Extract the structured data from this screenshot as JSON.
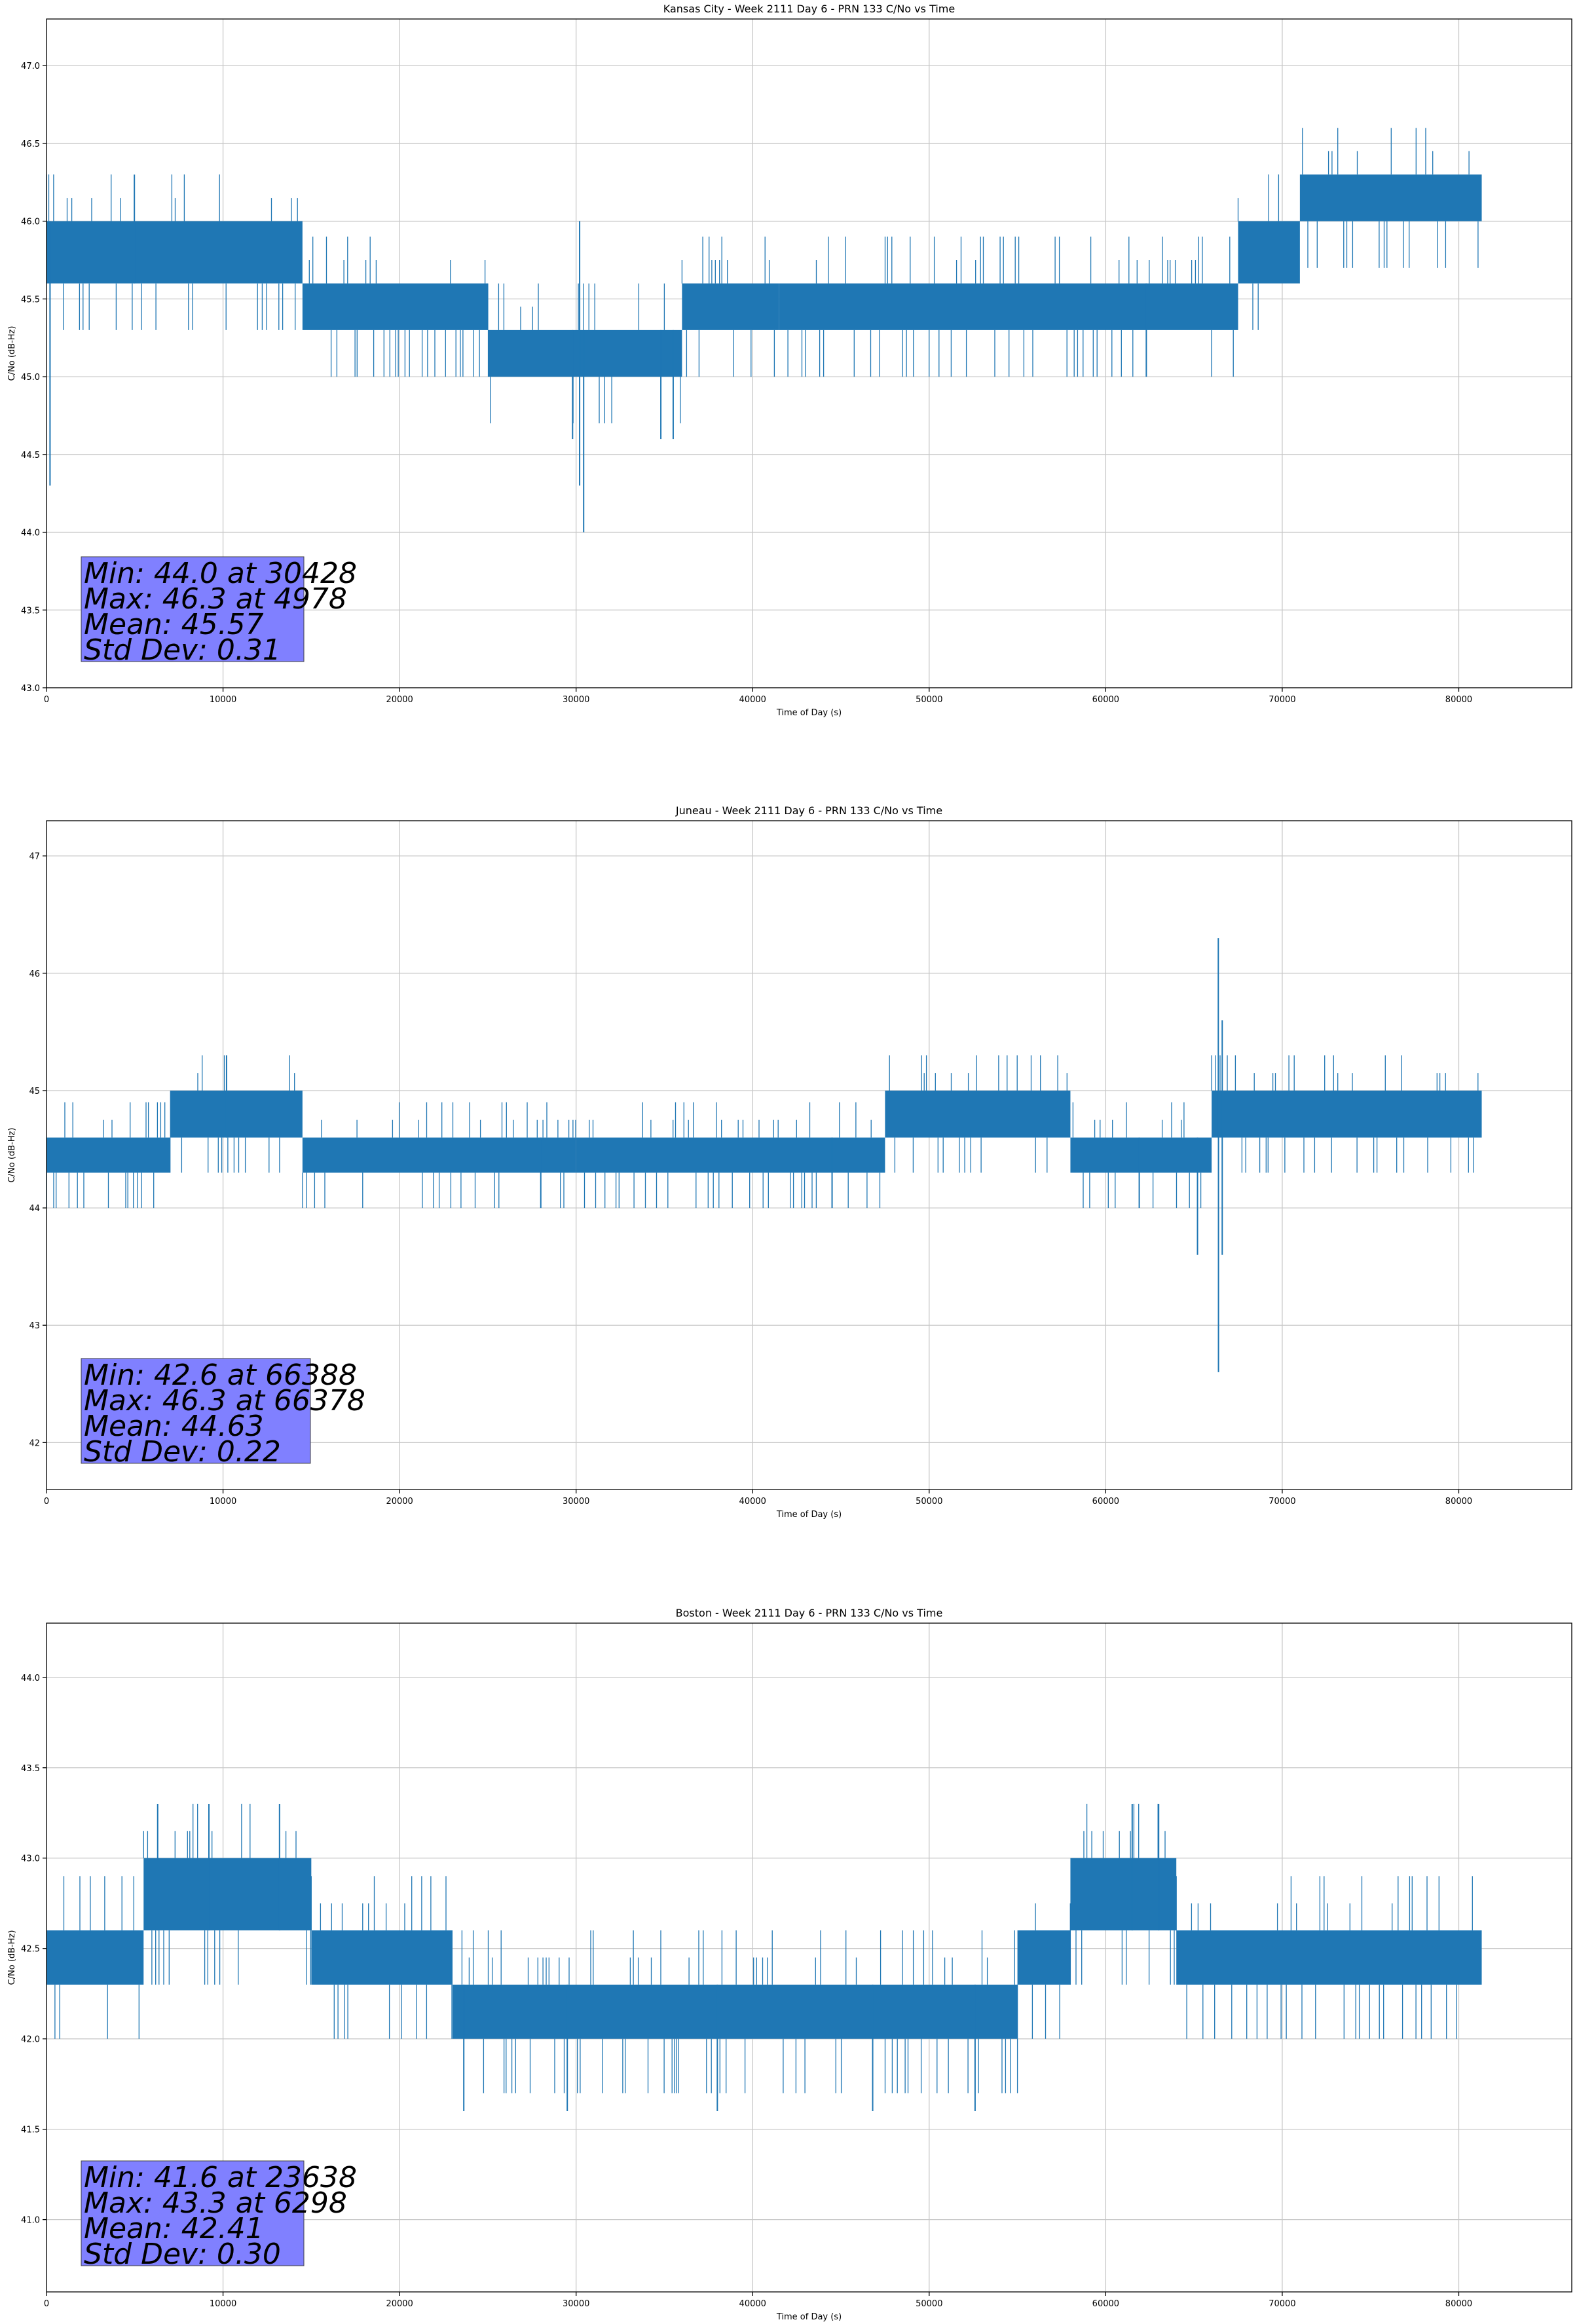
{
  "colors": {
    "series": "#1f77b4",
    "stats_box": "#8080ff",
    "grid": "#c8c8c8"
  },
  "chart_data": [
    {
      "type": "line",
      "title": "Kansas City - Week 2111 Day 6 - PRN 133 C/No vs Time",
      "xlabel": "Time of Day (s)",
      "ylabel": "C/No (dB-Hz)",
      "xlim": [
        0,
        86400
      ],
      "ylim": [
        43.0,
        47.3
      ],
      "xticks": [
        0,
        10000,
        20000,
        30000,
        40000,
        50000,
        60000,
        70000,
        80000
      ],
      "yticks": [
        43.0,
        43.5,
        44.0,
        44.5,
        45.0,
        45.5,
        46.0,
        46.5,
        47.0
      ],
      "ytick_labels": [
        "43.0",
        "43.5",
        "44.0",
        "44.5",
        "45.0",
        "45.5",
        "46.0",
        "46.5",
        "47.0"
      ],
      "grid": true,
      "bands": [
        {
          "x": [
            0,
            14500
          ],
          "low": 45.6,
          "high": 46.0
        },
        {
          "x": [
            14500,
            25000
          ],
          "low": 45.3,
          "high": 45.6
        },
        {
          "x": [
            25000,
            36000
          ],
          "low": 45.0,
          "high": 45.3
        },
        {
          "x": [
            36000,
            41500
          ],
          "low": 45.3,
          "high": 45.6
        },
        {
          "x": [
            41500,
            67500
          ],
          "low": 45.3,
          "high": 45.6
        },
        {
          "x": [
            67500,
            71000
          ],
          "low": 45.6,
          "high": 46.0
        },
        {
          "x": [
            71000,
            81300
          ],
          "low": 46.0,
          "high": 46.3
        }
      ],
      "spikes": [
        {
          "x": 30428,
          "low": 44.0,
          "high": 45.3
        },
        {
          "x": 4978,
          "low": 45.6,
          "high": 46.3
        },
        {
          "x": 200,
          "low": 44.3,
          "high": 46.0
        },
        {
          "x": 29800,
          "low": 44.6,
          "high": 45.3
        },
        {
          "x": 30200,
          "low": 44.3,
          "high": 46.0
        },
        {
          "x": 34800,
          "low": 44.6,
          "high": 45.3
        },
        {
          "x": 35500,
          "low": 44.6,
          "high": 45.3
        },
        {
          "x": 62300,
          "low": 45.0,
          "high": 45.6
        }
      ],
      "stats": {
        "min": "Min: 44.0 at 30428",
        "max": "Max: 46.3 at 4978",
        "mean": "Mean: 45.57",
        "std": "Std Dev: 0.31"
      }
    },
    {
      "type": "line",
      "title": "Juneau - Week 2111 Day 6 - PRN 133 C/No vs Time",
      "xlabel": "Time of Day (s)",
      "ylabel": "C/No (dB-Hz)",
      "xlim": [
        0,
        86400
      ],
      "ylim": [
        41.6,
        47.3
      ],
      "xticks": [
        0,
        10000,
        20000,
        30000,
        40000,
        50000,
        60000,
        70000,
        80000
      ],
      "yticks": [
        42,
        43,
        44,
        45,
        46,
        47
      ],
      "ytick_labels": [
        "42",
        "43",
        "44",
        "45",
        "46",
        "47"
      ],
      "grid": true,
      "bands": [
        {
          "x": [
            0,
            7000
          ],
          "low": 44.3,
          "high": 44.6
        },
        {
          "x": [
            7000,
            14500
          ],
          "low": 44.6,
          "high": 45.0
        },
        {
          "x": [
            14500,
            30000
          ],
          "low": 44.3,
          "high": 44.6
        },
        {
          "x": [
            30000,
            47500
          ],
          "low": 44.3,
          "high": 44.6
        },
        {
          "x": [
            47500,
            58000
          ],
          "low": 44.6,
          "high": 45.0
        },
        {
          "x": [
            58000,
            66000
          ],
          "low": 44.3,
          "high": 44.6
        },
        {
          "x": [
            66000,
            81300
          ],
          "low": 44.6,
          "high": 45.0
        }
      ],
      "spikes": [
        {
          "x": 66388,
          "low": 42.6,
          "high": 45.0
        },
        {
          "x": 66378,
          "low": 44.6,
          "high": 46.3
        },
        {
          "x": 65200,
          "low": 43.6,
          "high": 44.6
        },
        {
          "x": 66600,
          "low": 43.6,
          "high": 45.6
        },
        {
          "x": 28000,
          "low": 44.0,
          "high": 44.6
        },
        {
          "x": 44500,
          "low": 44.0,
          "high": 44.6
        },
        {
          "x": 61900,
          "low": 44.0,
          "high": 44.6
        },
        {
          "x": 10200,
          "low": 44.6,
          "high": 45.3
        }
      ],
      "stats": {
        "min": "Min: 42.6 at 66388",
        "max": "Max: 46.3 at 66378",
        "mean": "Mean: 44.63",
        "std": "Std Dev: 0.22"
      }
    },
    {
      "type": "line",
      "title": "Boston - Week 2111 Day 6 - PRN 133 C/No vs Time",
      "xlabel": "Time of Day (s)",
      "ylabel": "C/No (dB-Hz)",
      "xlim": [
        0,
        86400
      ],
      "ylim": [
        40.6,
        44.3
      ],
      "xticks": [
        0,
        10000,
        20000,
        30000,
        40000,
        50000,
        60000,
        70000,
        80000
      ],
      "yticks": [
        41.0,
        41.5,
        42.0,
        42.5,
        43.0,
        43.5,
        44.0
      ],
      "ytick_labels": [
        "41.0",
        "41.5",
        "42.0",
        "42.5",
        "43.0",
        "43.5",
        "44.0"
      ],
      "grid": true,
      "bands": [
        {
          "x": [
            0,
            5500
          ],
          "low": 42.3,
          "high": 42.6
        },
        {
          "x": [
            5500,
            15000
          ],
          "low": 42.6,
          "high": 43.0
        },
        {
          "x": [
            15000,
            23000
          ],
          "low": 42.3,
          "high": 42.6
        },
        {
          "x": [
            23000,
            55000
          ],
          "low": 42.0,
          "high": 42.3
        },
        {
          "x": [
            55000,
            58000
          ],
          "low": 42.3,
          "high": 42.6
        },
        {
          "x": [
            58000,
            64000
          ],
          "low": 42.6,
          "high": 43.0
        },
        {
          "x": [
            64000,
            81300
          ],
          "low": 42.3,
          "high": 42.6
        }
      ],
      "spikes": [
        {
          "x": 23638,
          "low": 41.6,
          "high": 42.3
        },
        {
          "x": 6298,
          "low": 42.6,
          "high": 43.3
        },
        {
          "x": 9200,
          "low": 42.6,
          "high": 43.3
        },
        {
          "x": 13200,
          "low": 42.6,
          "high": 43.3
        },
        {
          "x": 29500,
          "low": 41.6,
          "high": 42.3
        },
        {
          "x": 38000,
          "low": 41.6,
          "high": 42.3
        },
        {
          "x": 46800,
          "low": 41.6,
          "high": 42.3
        },
        {
          "x": 52600,
          "low": 41.6,
          "high": 42.3
        },
        {
          "x": 61500,
          "low": 42.6,
          "high": 43.3
        },
        {
          "x": 63000,
          "low": 42.6,
          "high": 43.3
        }
      ],
      "stats": {
        "min": "Min: 41.6 at 23638",
        "max": "Max: 43.3 at 6298",
        "mean": "Mean: 42.41",
        "std": "Std Dev: 0.30"
      }
    }
  ]
}
